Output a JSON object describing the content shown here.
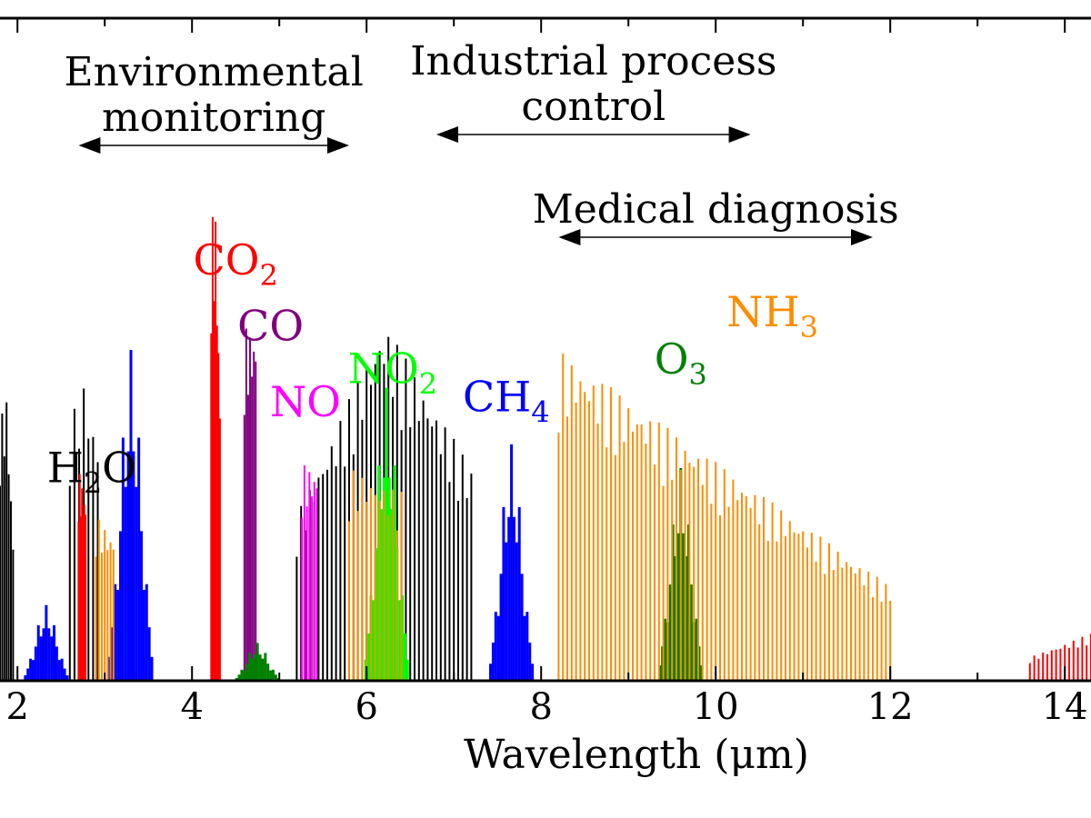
{
  "chart_data": {
    "type": "area",
    "title": "",
    "xlabel": "Wavelength (μm)",
    "ylabel": "",
    "xlim": [
      1.8,
      14.3
    ],
    "ylim": [
      0,
      1
    ],
    "x_ticks": [
      2,
      4,
      6,
      8,
      10,
      12,
      14
    ],
    "x_tick_labels": [
      "2",
      "4",
      "6",
      "8",
      "10",
      "12",
      "14"
    ],
    "grid": false,
    "applications": [
      {
        "id": "env",
        "lines": [
          "Environmental",
          "monitoring"
        ],
        "range": [
          2.7,
          5.8
        ]
      },
      {
        "id": "ind",
        "lines": [
          "Industrial process",
          "control"
        ],
        "range": [
          6.8,
          10.4
        ]
      },
      {
        "id": "med",
        "lines": [
          "Medical diagnosis"
        ],
        "range": [
          8.2,
          11.8
        ]
      }
    ],
    "series": [
      {
        "name": "H2O",
        "label_main": "H",
        "label_sub": "2",
        "label_tail": "O",
        "color": "#000000",
        "label_at": [
          2.85,
          0.42
        ],
        "bands": [
          {
            "x": [
              1.8,
              1.86,
              1.95
            ],
            "y": [
              0.55,
              0.6,
              0.3
            ]
          },
          {
            "x": [
              2.6,
              2.75,
              2.92
            ],
            "y": [
              0.55,
              0.63,
              0.5
            ]
          },
          {
            "x": [
              5.2,
              6.2,
              7.2
            ],
            "y": [
              0.35,
              0.76,
              0.45
            ]
          }
        ]
      },
      {
        "name": "CO2",
        "label_main": "CO",
        "label_sub": "2",
        "label_tail": "",
        "color": "#ff0000",
        "label_at": [
          4.5,
          0.86
        ],
        "bands": [
          {
            "x": [
              2.7,
              2.78
            ],
            "y": [
              0.45,
              0.38
            ]
          },
          {
            "x": [
              4.22,
              4.27,
              4.32
            ],
            "y": [
              0.98,
              0.99,
              0.6
            ]
          },
          {
            "x": [
              13.6,
              14.3
            ],
            "y": [
              0.05,
              0.1
            ]
          }
        ]
      },
      {
        "name": "CO",
        "label_main": "CO",
        "label_sub": "",
        "label_tail": "",
        "color": "#800080",
        "label_at": [
          4.9,
          0.72
        ],
        "bands": [
          {
            "x": [
              4.6,
              4.73
            ],
            "y": [
              0.75,
              0.73
            ]
          }
        ]
      },
      {
        "name": "NO",
        "label_main": "NO",
        "label_sub": "",
        "label_tail": "",
        "color": "#ff00ff",
        "label_at": [
          5.3,
          0.56
        ],
        "bands": [
          {
            "x": [
              5.26,
              5.43
            ],
            "y": [
              0.46,
              0.44
            ]
          }
        ]
      },
      {
        "name": "NO2",
        "label_main": "NO",
        "label_sub": "2",
        "label_tail": "",
        "color": "#00ff00",
        "label_at": [
          6.3,
          0.63
        ],
        "bands": [
          {
            "x": [
              3.2,
              4.25
            ],
            "y": [
              0.0,
              0.0
            ]
          },
          {
            "x": [
              6.23
            ],
            "y": [
              0.62
            ]
          }
        ]
      },
      {
        "name": "CH4",
        "label_main": "CH",
        "label_sub": "4",
        "label_tail": "",
        "color": "#0000ff",
        "label_at": [
          7.6,
          0.57
        ],
        "bands": [
          {
            "x": [
              2.33
            ],
            "y": [
              0.16
            ]
          },
          {
            "x": [
              3.3
            ],
            "y": [
              0.7
            ]
          },
          {
            "x": [
              7.66
            ],
            "y": [
              0.5
            ]
          }
        ]
      },
      {
        "name": "O3",
        "label_main": "O",
        "label_sub": "3",
        "label_tail": "",
        "color": "#008000",
        "label_at": [
          9.6,
          0.65
        ],
        "bands": [
          {
            "x": [
              4.75
            ],
            "y": [
              0.08
            ]
          },
          {
            "x": [
              9.6
            ],
            "y": [
              0.45
            ]
          }
        ]
      },
      {
        "name": "NH3",
        "label_main": "NH",
        "label_sub": "3",
        "label_tail": "",
        "color": "#ff8c00",
        "label_at": [
          10.65,
          0.75
        ],
        "bands": [
          {
            "x": [
              2.9,
              3.1
            ],
            "y": [
              0.35,
              0.3
            ]
          },
          {
            "x": [
              5.8,
              6.4
            ],
            "y": [
              0.45,
              0.4
            ]
          },
          {
            "x": [
              8.2,
              12.0
            ],
            "y": [
              0.7,
              0.2
            ]
          }
        ]
      }
    ]
  }
}
